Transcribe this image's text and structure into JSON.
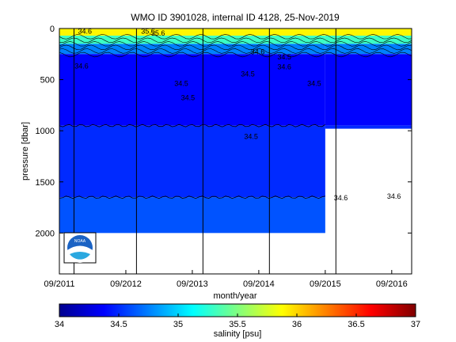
{
  "chart_data": {
    "type": "heatmap",
    "title": "WMO ID 3901028, internal ID 4128, 25-Nov-2019",
    "xlabel": "month/year",
    "ylabel": "pressure [dbar]",
    "colorbar_label": "salinity [psu]",
    "x_tick_labels": [
      "09/2011",
      "09/2012",
      "09/2013",
      "09/2014",
      "09/2015",
      "09/2016"
    ],
    "x_ticks_year": [
      2011.67,
      2012.67,
      2013.67,
      2014.67,
      2015.67,
      2016.67
    ],
    "xlim_year": [
      2011.67,
      2016.97
    ],
    "y_ticks": [
      0,
      500,
      1000,
      1500,
      2000
    ],
    "ylim": [
      0,
      2400
    ],
    "y_reversed": true,
    "colorbar_ticks": [
      34,
      34.5,
      35,
      35.5,
      36,
      36.5,
      37
    ],
    "colorbar_range": [
      34,
      37
    ],
    "colormap": [
      "#00008f",
      "#0000ff",
      "#00ffff",
      "#ffff00",
      "#ff0000",
      "#800000"
    ],
    "profile_lines_year": [
      2011.89,
      2012.83,
      2013.83,
      2014.83,
      2015.83
    ],
    "depth_layers": [
      {
        "top": 0,
        "bottom": 70,
        "salinity": 35.9
      },
      {
        "top": 70,
        "bottom": 150,
        "salinity": 35.3
      },
      {
        "top": 150,
        "bottom": 250,
        "salinity": 34.75
      },
      {
        "top": 250,
        "bottom": 950,
        "salinity": 34.38
      },
      {
        "top": 950,
        "bottom": 1650,
        "salinity": 34.5
      },
      {
        "top": 1650,
        "bottom": 2000,
        "salinity": 34.62
      }
    ],
    "data_end_year": 2015.67,
    "late_coverage": [
      {
        "start_year": 2015.67,
        "end_year": 2016.97,
        "max_pressure": 980
      }
    ],
    "contour_levels": [
      {
        "level": "34.5",
        "pressure": 950
      },
      {
        "level": "34.6",
        "pressure": 1650
      }
    ],
    "contour_labels": [
      {
        "text": "34.6",
        "year": 2011.95,
        "pressure": 50
      },
      {
        "text": "35.6",
        "year": 2012.9,
        "pressure": 50
      },
      {
        "text": "35.6",
        "year": 2013.05,
        "pressure": 70
      },
      {
        "text": "34.6",
        "year": 2011.9,
        "pressure": 390
      },
      {
        "text": "34.6",
        "year": 2014.55,
        "pressure": 250
      },
      {
        "text": "34.5",
        "year": 2013.4,
        "pressure": 560
      },
      {
        "text": "34.5",
        "year": 2014.4,
        "pressure": 470
      },
      {
        "text": "34.5",
        "year": 2015.4,
        "pressure": 560
      },
      {
        "text": "34.6",
        "year": 2014.95,
        "pressure": 400
      },
      {
        "text": "34.5",
        "year": 2014.95,
        "pressure": 300
      },
      {
        "text": "34.5",
        "year": 2013.5,
        "pressure": 700
      },
      {
        "text": "34.5",
        "year": 2014.45,
        "pressure": 1080
      },
      {
        "text": "34.6",
        "year": 2015.8,
        "pressure": 1680
      },
      {
        "text": "34.6",
        "year": 2016.6,
        "pressure": 1665
      }
    ]
  }
}
